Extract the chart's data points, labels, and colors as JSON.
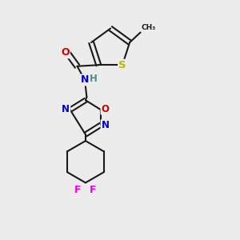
{
  "bg_color": "#ececec",
  "bond_color": "#1a1a1a",
  "bond_width": 1.5,
  "atom_colors": {
    "S": "#b8b800",
    "O": "#cc0000",
    "N": "#0000cc",
    "H": "#4a9090",
    "F": "#ee00ee",
    "C": "#1a1a1a"
  },
  "font_size": 8.5
}
